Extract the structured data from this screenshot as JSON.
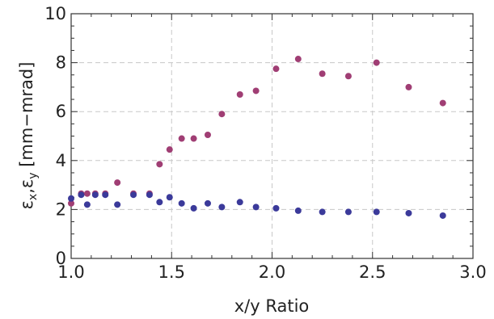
{
  "chart_data": {
    "type": "scatter",
    "title": "",
    "xlabel": "x/y Ratio",
    "ylabel": "εx,εy [mm−mrad]",
    "xlim": [
      1.0,
      3.0
    ],
    "ylim": [
      0,
      10
    ],
    "x_ticks": [
      1.0,
      1.5,
      2.0,
      2.5,
      3.0
    ],
    "x_tick_labels": [
      "1.0",
      "1.5",
      "2.0",
      "2.5",
      "3.0"
    ],
    "y_ticks": [
      0,
      2,
      4,
      6,
      8,
      10
    ],
    "y_tick_labels": [
      "0",
      "2",
      "4",
      "6",
      "8",
      "10"
    ],
    "grid": true,
    "legend": "none",
    "series": [
      {
        "color": "#a03e74",
        "points": [
          [
            1.0,
            2.25
          ],
          [
            1.05,
            2.65
          ],
          [
            1.08,
            2.65
          ],
          [
            1.12,
            2.65
          ],
          [
            1.17,
            2.65
          ],
          [
            1.23,
            3.1
          ],
          [
            1.31,
            2.65
          ],
          [
            1.39,
            2.65
          ],
          [
            1.44,
            3.85
          ],
          [
            1.49,
            4.45
          ],
          [
            1.55,
            4.9
          ],
          [
            1.61,
            4.9
          ],
          [
            1.68,
            5.05
          ],
          [
            1.75,
            5.9
          ],
          [
            1.84,
            6.7
          ],
          [
            1.92,
            6.85
          ],
          [
            2.02,
            7.75
          ],
          [
            2.13,
            8.15
          ],
          [
            2.25,
            7.55
          ],
          [
            2.38,
            7.45
          ],
          [
            2.52,
            8.0
          ],
          [
            2.68,
            7.0
          ],
          [
            2.85,
            6.35
          ]
        ]
      },
      {
        "color": "#3b3a9a",
        "points": [
          [
            1.0,
            2.45
          ],
          [
            1.05,
            2.6
          ],
          [
            1.08,
            2.2
          ],
          [
            1.12,
            2.6
          ],
          [
            1.17,
            2.6
          ],
          [
            1.23,
            2.2
          ],
          [
            1.31,
            2.6
          ],
          [
            1.39,
            2.6
          ],
          [
            1.44,
            2.3
          ],
          [
            1.49,
            2.5
          ],
          [
            1.55,
            2.25
          ],
          [
            1.61,
            2.05
          ],
          [
            1.68,
            2.25
          ],
          [
            1.75,
            2.1
          ],
          [
            1.84,
            2.3
          ],
          [
            1.92,
            2.1
          ],
          [
            2.02,
            2.05
          ],
          [
            2.13,
            1.95
          ],
          [
            2.25,
            1.9
          ],
          [
            2.38,
            1.9
          ],
          [
            2.52,
            1.9
          ],
          [
            2.68,
            1.85
          ],
          [
            2.85,
            1.75
          ]
        ]
      }
    ]
  }
}
